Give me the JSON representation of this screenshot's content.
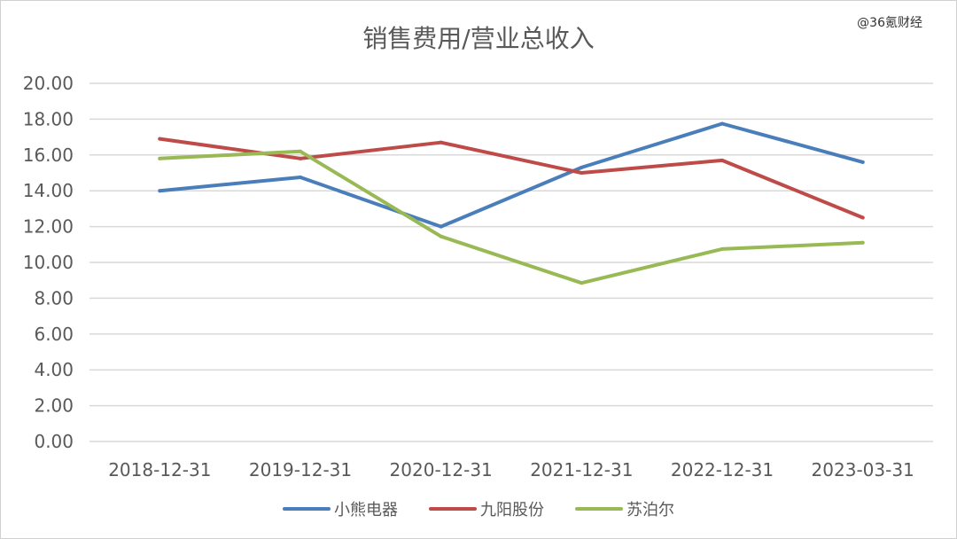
{
  "watermark": "@36氪财经",
  "chart_data": {
    "type": "line",
    "title": "销售费用/营业总收入",
    "categories": [
      "2018-12-31",
      "2019-12-31",
      "2020-12-31",
      "2021-12-31",
      "2022-12-31",
      "2023-03-31"
    ],
    "y_ticks": [
      "0.00",
      "2.00",
      "4.00",
      "6.00",
      "8.00",
      "10.00",
      "12.00",
      "14.00",
      "16.00",
      "18.00",
      "20.00"
    ],
    "ylim": [
      0,
      20
    ],
    "grid": true,
    "legend_position": "bottom",
    "series": [
      {
        "name": "小熊电器",
        "color": "#4a7ebb",
        "values": [
          14.0,
          14.75,
          12.0,
          15.3,
          17.75,
          15.6
        ]
      },
      {
        "name": "九阳股份",
        "color": "#be4b48",
        "values": [
          16.9,
          15.8,
          16.7,
          15.0,
          15.7,
          12.5
        ]
      },
      {
        "name": "苏泊尔",
        "color": "#98b954",
        "values": [
          15.8,
          16.2,
          11.45,
          8.85,
          10.75,
          11.1
        ]
      }
    ]
  }
}
